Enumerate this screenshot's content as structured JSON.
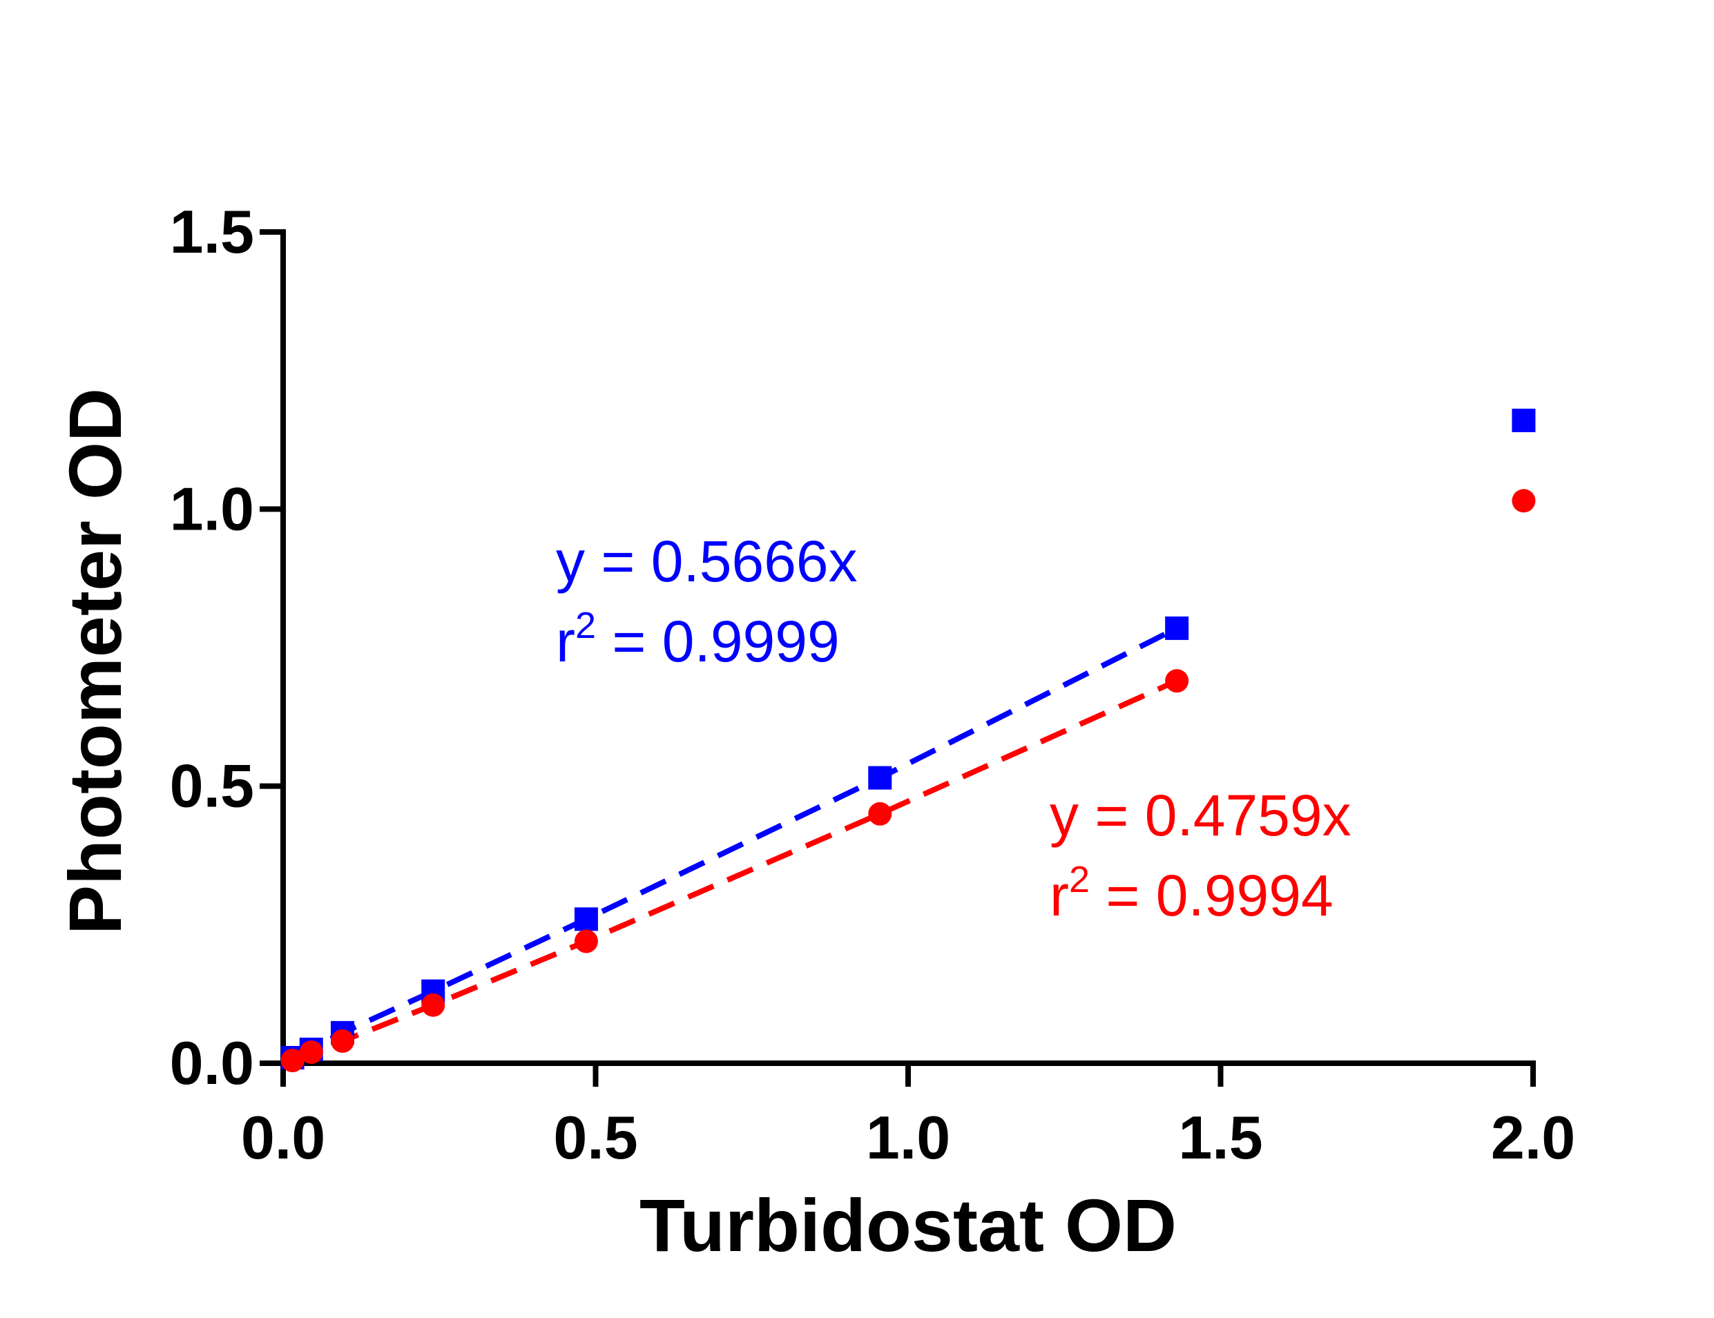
{
  "chart_data": {
    "type": "scatter",
    "xlabel": "Turbidostat OD",
    "ylabel": "Photometer OD",
    "xlim": [
      0,
      2.0
    ],
    "ylim": [
      0,
      1.5
    ],
    "xticks": [
      "0.0",
      "0.5",
      "1.0",
      "1.5",
      "2.0"
    ],
    "yticks": [
      "0.0",
      "0.5",
      "1.0",
      "1.5"
    ],
    "grid": false,
    "series": [
      {
        "marker": "square",
        "color": "#0000ff",
        "x": [
          0.015,
          0.045,
          0.095,
          0.24,
          0.485,
          0.955,
          1.43,
          1.985
        ],
        "y": [
          0.01,
          0.025,
          0.055,
          0.13,
          0.26,
          0.515,
          0.785,
          1.16
        ],
        "fit": {
          "equation": "y = 0.5666x",
          "r2_prefix": "r",
          "r2_exp": "2",
          "r2_value": " = 0.9999",
          "x": [
            0.015,
            0.045,
            0.095,
            0.24,
            0.485,
            0.955,
            1.43
          ]
        }
      },
      {
        "marker": "circle",
        "color": "#ff0000",
        "x": [
          0.015,
          0.045,
          0.095,
          0.24,
          0.485,
          0.955,
          1.43,
          1.985
        ],
        "y": [
          0.005,
          0.02,
          0.04,
          0.105,
          0.22,
          0.45,
          0.69,
          1.015
        ],
        "fit": {
          "equation": "y = 0.4759x",
          "r2_prefix": "r",
          "r2_exp": "2",
          "r2_value": " = 0.9994",
          "x": [
            0.015,
            0.045,
            0.095,
            0.24,
            0.485,
            0.955,
            1.43
          ]
        }
      }
    ]
  }
}
